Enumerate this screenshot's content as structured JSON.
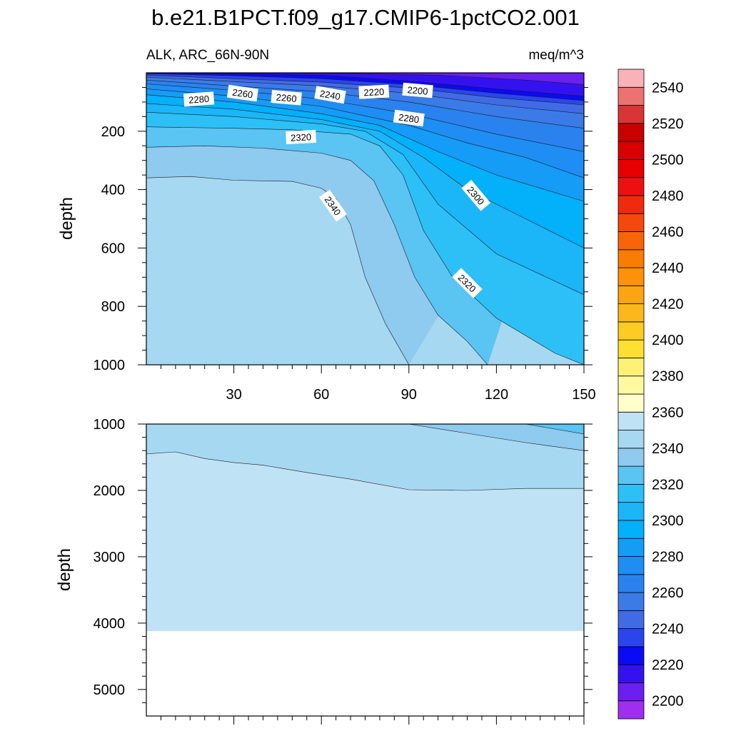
{
  "chart_data": {
    "type": "heatmap",
    "title": "b.e21.B1PCT.f09_g17.CMIP6-1pctCO2.001",
    "subtitle_left": "ALK, ARC_66N-90N",
    "subtitle_right": "meq/m^3",
    "ylabel": "depth",
    "xlim": [
      0,
      150
    ],
    "x_ticks": [
      {
        "value": 30,
        "label": "30"
      },
      {
        "value": 60,
        "label": "60"
      },
      {
        "value": 90,
        "label": "90"
      },
      {
        "value": 120,
        "label": "120"
      },
      {
        "value": 150,
        "label": "150"
      }
    ],
    "panels": [
      {
        "name": "upper",
        "ylim": [
          0,
          1000
        ],
        "y_ticks": [
          {
            "value": 200,
            "label": "200"
          },
          {
            "value": 400,
            "label": "400"
          },
          {
            "value": 600,
            "label": "600"
          },
          {
            "value": 800,
            "label": "800"
          },
          {
            "value": 1000,
            "label": "1000"
          }
        ],
        "contour_labels": [
          {
            "text": "2280",
            "x": 18,
            "depth": 90,
            "rotation": -4
          },
          {
            "text": "2260",
            "x": 33,
            "depth": 70,
            "rotation": 8
          },
          {
            "text": "2260",
            "x": 48,
            "depth": 85,
            "rotation": 5
          },
          {
            "text": "2240",
            "x": 63,
            "depth": 75,
            "rotation": 10
          },
          {
            "text": "2220",
            "x": 78,
            "depth": 65,
            "rotation": -3
          },
          {
            "text": "2200",
            "x": 93,
            "depth": 60,
            "rotation": 5
          },
          {
            "text": "2280",
            "x": 90,
            "depth": 155,
            "rotation": 8
          },
          {
            "text": "2320",
            "x": 53,
            "depth": 220,
            "rotation": -3
          },
          {
            "text": "2340",
            "x": 64,
            "depth": 455,
            "rotation": 55
          },
          {
            "text": "2300",
            "x": 113,
            "depth": 420,
            "rotation": 50
          },
          {
            "text": "2320",
            "x": 110,
            "depth": 720,
            "rotation": 45
          }
        ]
      },
      {
        "name": "lower",
        "ylim": [
          1000,
          5400
        ],
        "y_ticks": [
          {
            "value": 1000,
            "label": "1000"
          },
          {
            "value": 2000,
            "label": "2000"
          },
          {
            "value": 3000,
            "label": "3000"
          },
          {
            "value": 4000,
            "label": "4000"
          },
          {
            "value": 5000,
            "label": "5000"
          }
        ],
        "bottom_depth": 4120
      }
    ],
    "colorbar": {
      "levels": [
        2200,
        2210,
        2220,
        2230,
        2240,
        2250,
        2260,
        2270,
        2280,
        2290,
        2300,
        2310,
        2320,
        2330,
        2340,
        2350,
        2360,
        2370,
        2380,
        2390,
        2400,
        2410,
        2420,
        2430,
        2440,
        2450,
        2460,
        2470,
        2480,
        2490,
        2500,
        2510,
        2520,
        2530,
        2540,
        2550
      ],
      "label_values": [
        "2200",
        "2220",
        "2240",
        "2260",
        "2280",
        "2300",
        "2320",
        "2340",
        "2360",
        "2380",
        "2400",
        "2420",
        "2440",
        "2460",
        "2480",
        "2500",
        "2520",
        "2540"
      ],
      "colors": [
        "#a02ef0",
        "#6b1ff0",
        "#3412f0",
        "#0a0af5",
        "#2b45ee",
        "#416be4",
        "#3a7be8",
        "#2a82ee",
        "#1e8ef4",
        "#149cf7",
        "#03b0fa",
        "#1ab6f8",
        "#2cc0f6",
        "#5ac4f3",
        "#8ecbee",
        "#a7d8f1",
        "#bfe3f5",
        "#ffffcc",
        "#fffaa0",
        "#fff176",
        "#ffe030",
        "#fdcc22",
        "#fcb81a",
        "#fca512",
        "#fc910a",
        "#fa7d02",
        "#f86408",
        "#f5480c",
        "#f02a0e",
        "#ee1010",
        "#e80000",
        "#d80000",
        "#c80000",
        "#da3535",
        "#ec7272",
        "#f8b2b8"
      ]
    }
  }
}
